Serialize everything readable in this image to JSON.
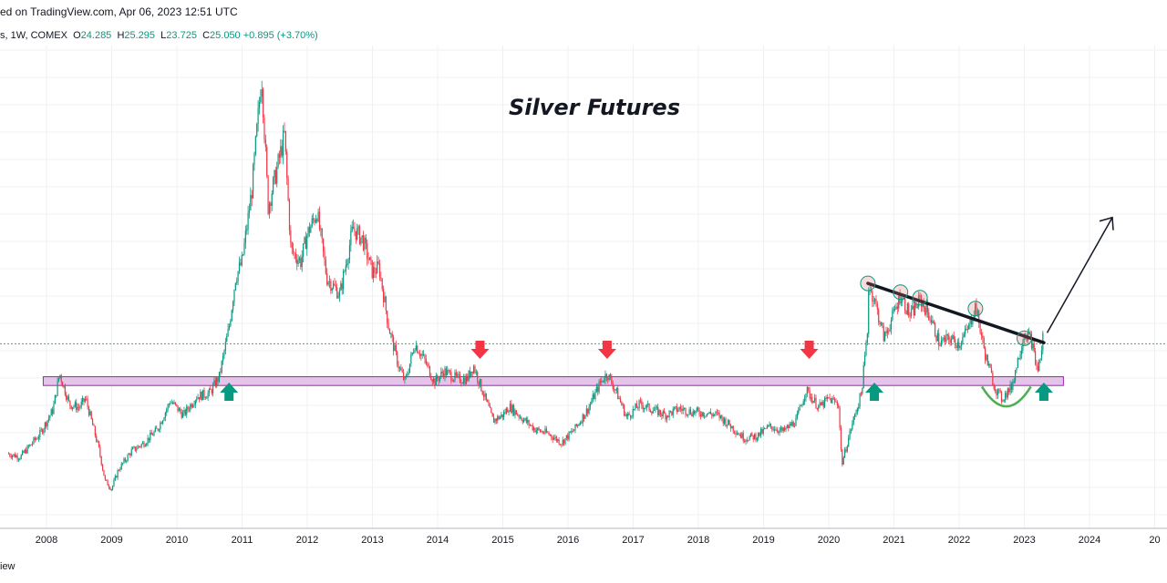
{
  "header": {
    "published_text": "ed on TradingView.com, Apr 06, 2023 12:51 UTC",
    "symbol_info": "s, 1W, COMEX",
    "ohlc": {
      "open_label": "O",
      "open": "24.285",
      "high_label": "H",
      "high": "25.295",
      "low_label": "L",
      "low": "23.725",
      "close_label": "C",
      "close": "25.050",
      "change": "+0.895 (+3.70%)"
    }
  },
  "footer": {
    "brand": "iew"
  },
  "colors": {
    "up": "#089981",
    "down": "#f23645",
    "support_zone_fill": "#e1bee7",
    "support_zone_border": "#9c27b0",
    "current_price_line": "#4caf50",
    "trendline": "#131722",
    "cup_arc": "#4caf50",
    "touch_circle": "#e57373",
    "grid": "#eef0f3"
  },
  "chart_data": {
    "type": "line",
    "title": "Silver Futures",
    "timeframe": "1W",
    "exchange": "COMEX",
    "x_ticks": [
      "2008",
      "2009",
      "2010",
      "2011",
      "2012",
      "2013",
      "2014",
      "2015",
      "2016",
      "2017",
      "2018",
      "2019",
      "2020",
      "2021",
      "2022",
      "2023",
      "2024",
      "20"
    ],
    "ylim": [
      12.0,
      50.0
    ],
    "grid": true,
    "series": [
      {
        "points": [
          [
            2007.4,
            13.0
          ],
          [
            2007.6,
            12.7
          ],
          [
            2007.9,
            14.8
          ],
          [
            2008.1,
            17.0
          ],
          [
            2008.2,
            20.3
          ],
          [
            2008.35,
            17.5
          ],
          [
            2008.5,
            17.2
          ],
          [
            2008.6,
            18.0
          ],
          [
            2008.8,
            13.5
          ],
          [
            2008.9,
            10.5
          ],
          [
            2009.0,
            9.8
          ],
          [
            2009.1,
            11.5
          ],
          [
            2009.3,
            13.2
          ],
          [
            2009.5,
            14.0
          ],
          [
            2009.7,
            15.2
          ],
          [
            2009.9,
            17.8
          ],
          [
            2010.1,
            16.5
          ],
          [
            2010.3,
            18.2
          ],
          [
            2010.5,
            18.5
          ],
          [
            2010.65,
            20.0
          ],
          [
            2010.8,
            24.5
          ],
          [
            2010.9,
            29.0
          ],
          [
            2011.0,
            30.5
          ],
          [
            2011.15,
            37.0
          ],
          [
            2011.3,
            47.5
          ],
          [
            2011.4,
            35.5
          ],
          [
            2011.5,
            38.0
          ],
          [
            2011.65,
            42.0
          ],
          [
            2011.75,
            31.5
          ],
          [
            2011.9,
            30.5
          ],
          [
            2012.0,
            33.0
          ],
          [
            2012.15,
            35.0
          ],
          [
            2012.3,
            29.0
          ],
          [
            2012.5,
            27.5
          ],
          [
            2012.7,
            33.5
          ],
          [
            2012.85,
            32.5
          ],
          [
            2013.0,
            29.5
          ],
          [
            2013.1,
            30.0
          ],
          [
            2013.25,
            24.5
          ],
          [
            2013.4,
            21.0
          ],
          [
            2013.5,
            19.5
          ],
          [
            2013.65,
            23.0
          ],
          [
            2013.8,
            21.5
          ],
          [
            2013.95,
            19.5
          ],
          [
            2014.1,
            20.5
          ],
          [
            2014.3,
            19.8
          ],
          [
            2014.45,
            19.8
          ],
          [
            2014.55,
            21.0
          ],
          [
            2014.7,
            18.5
          ],
          [
            2014.85,
            16.0
          ],
          [
            2015.0,
            16.5
          ],
          [
            2015.1,
            17.3
          ],
          [
            2015.3,
            16.2
          ],
          [
            2015.5,
            15.2
          ],
          [
            2015.7,
            14.8
          ],
          [
            2015.9,
            14.0
          ],
          [
            2016.1,
            15.2
          ],
          [
            2016.3,
            17.0
          ],
          [
            2016.5,
            19.5
          ],
          [
            2016.6,
            20.3
          ],
          [
            2016.75,
            18.5
          ],
          [
            2016.9,
            16.3
          ],
          [
            2017.1,
            17.5
          ],
          [
            2017.3,
            17.0
          ],
          [
            2017.5,
            16.5
          ],
          [
            2017.7,
            17.1
          ],
          [
            2017.9,
            16.8
          ],
          [
            2018.1,
            16.7
          ],
          [
            2018.3,
            16.5
          ],
          [
            2018.5,
            15.5
          ],
          [
            2018.7,
            14.4
          ],
          [
            2018.9,
            14.6
          ],
          [
            2019.1,
            15.5
          ],
          [
            2019.3,
            15.0
          ],
          [
            2019.5,
            16.0
          ],
          [
            2019.65,
            18.8
          ],
          [
            2019.85,
            17.2
          ],
          [
            2020.0,
            18.0
          ],
          [
            2020.15,
            17.5
          ],
          [
            2020.2,
            12.0
          ],
          [
            2020.35,
            15.5
          ],
          [
            2020.5,
            18.5
          ],
          [
            2020.6,
            24.5
          ],
          [
            2020.6,
            28.5
          ],
          [
            2020.7,
            27.0
          ],
          [
            2020.85,
            23.5
          ],
          [
            2021.0,
            25.8
          ],
          [
            2021.1,
            27.5
          ],
          [
            2021.25,
            25.5
          ],
          [
            2021.4,
            27.0
          ],
          [
            2021.55,
            25.5
          ],
          [
            2021.7,
            23.0
          ],
          [
            2021.85,
            23.5
          ],
          [
            2022.0,
            23.0
          ],
          [
            2022.15,
            24.5
          ],
          [
            2022.25,
            26.5
          ],
          [
            2022.4,
            22.0
          ],
          [
            2022.55,
            19.0
          ],
          [
            2022.65,
            18.0
          ],
          [
            2022.8,
            19.0
          ],
          [
            2022.9,
            21.5
          ],
          [
            2023.0,
            24.0
          ],
          [
            2023.1,
            23.5
          ],
          [
            2023.2,
            20.5
          ],
          [
            2023.27,
            22.5
          ],
          [
            2023.3,
            25.05
          ]
        ]
      }
    ],
    "annotations": {
      "support_zone": {
        "y_low": 19.2,
        "y_high": 20.0,
        "x_start": 2007.95,
        "x_end": 2023.6
      },
      "current_price_line": 23.0,
      "trendline": {
        "from": [
          2020.6,
          28.5
        ],
        "to": [
          2023.3,
          23.1
        ]
      },
      "resistance_touches": [
        [
          2020.6,
          28.5
        ],
        [
          2021.1,
          27.7
        ],
        [
          2021.4,
          27.2
        ],
        [
          2022.25,
          26.2
        ],
        [
          2023.0,
          23.5
        ]
      ],
      "down_arrows": [
        2014.65,
        2016.6,
        2019.7
      ],
      "up_arrows": [
        2010.8,
        2020.7,
        2023.3
      ],
      "cup_arc": {
        "x_start": 2022.35,
        "x_end": 2023.1,
        "bottom": 17.3
      },
      "projection_arrow": {
        "from": [
          2023.35,
          24.0
        ],
        "to": [
          2024.35,
          34.5
        ]
      }
    }
  }
}
